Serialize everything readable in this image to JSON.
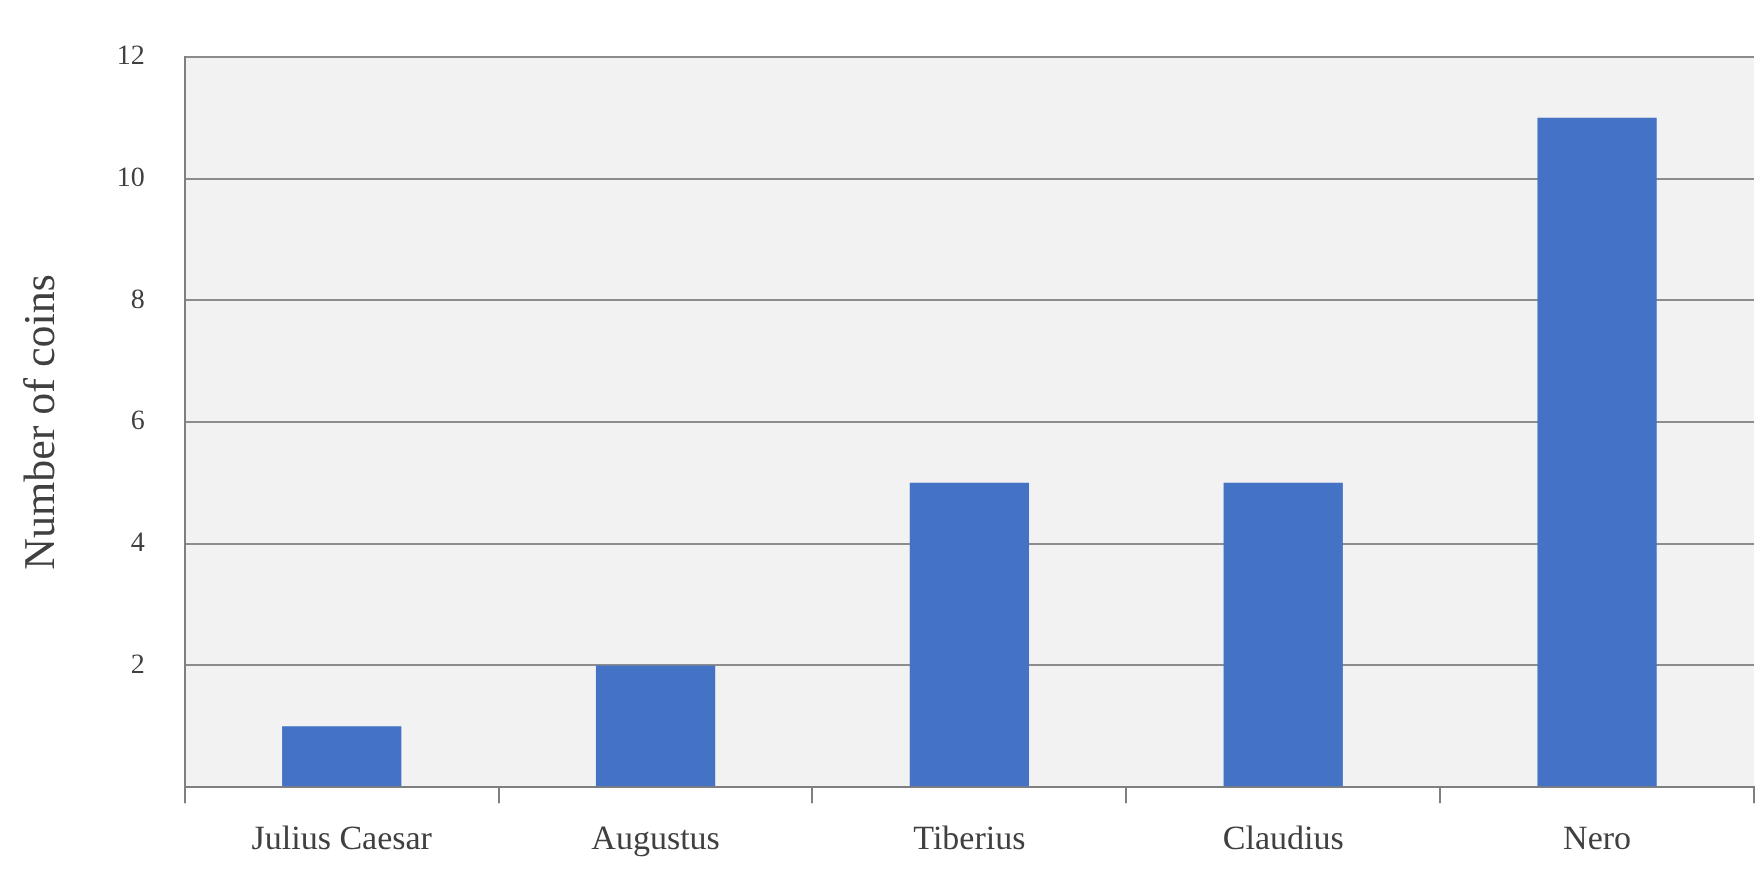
{
  "chart_data": {
    "type": "bar",
    "ylabel": "Number of coins",
    "categories": [
      "Julius Caesar",
      "Augustus",
      "Tiberius",
      "Claudius",
      "Nero"
    ],
    "values": [
      1,
      2,
      5,
      5,
      11
    ],
    "color": "#4472c4",
    "ylim": [
      0,
      12
    ],
    "yticks": [
      {
        "value": 0,
        "label": null
      },
      2,
      4,
      6,
      8,
      10,
      12
    ],
    "grid": "y",
    "legend": false
  }
}
